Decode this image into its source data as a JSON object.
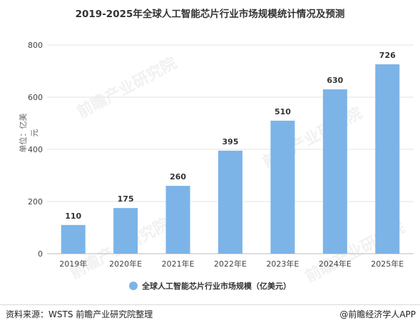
{
  "title": "2019-2025年全球人工智能芯片行业市场规模统计情况及预测",
  "ylabel": "单位：亿美元",
  "legend_label": "全球人工智能芯片行业市场规模（亿美元）",
  "source": "资料来源：WSTS 前瞻产业研究院整理",
  "brand": "@前瞻经济学人APP",
  "watermark": "前瞻产业研究院",
  "colors": {
    "bar": "#7cb4e8",
    "grid": "#e3e3e3",
    "axis": "#bbbbbb"
  },
  "chart_data": {
    "type": "bar",
    "categories": [
      "2019年",
      "2020年E",
      "2021年E",
      "2022年E",
      "2023年E",
      "2024年E",
      "2025年E"
    ],
    "values": [
      110,
      175,
      260,
      395,
      510,
      630,
      726
    ],
    "ylim": [
      0,
      800
    ],
    "yticks": [
      0,
      200,
      400,
      600,
      800
    ],
    "grid": true,
    "legend": "bottom"
  }
}
